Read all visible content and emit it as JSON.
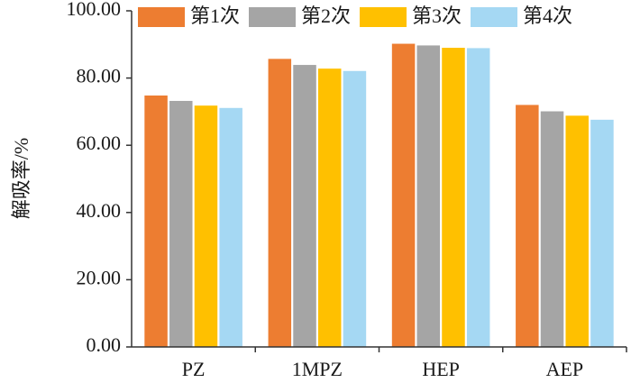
{
  "chart_data": {
    "type": "bar",
    "title": "",
    "xlabel": "",
    "ylabel": "解吸率/%",
    "ylim": [
      0,
      100
    ],
    "yticks": [
      "0.00",
      "20.00",
      "40.00",
      "60.00",
      "80.00",
      "100.00"
    ],
    "categories": [
      "PZ",
      "1MPZ",
      "HEP",
      "AEP"
    ],
    "legend_position": "top",
    "grid": false,
    "series": [
      {
        "name": "第1次",
        "color": "#ED7D31",
        "values": [
          74.8,
          85.7,
          90.2,
          72.0
        ]
      },
      {
        "name": "第2次",
        "color": "#A5A5A5",
        "values": [
          73.2,
          83.9,
          89.7,
          70.1
        ]
      },
      {
        "name": "第3次",
        "color": "#FFC000",
        "values": [
          71.8,
          82.8,
          89.0,
          68.8
        ]
      },
      {
        "name": "第4次",
        "color": "#A5D8F3",
        "values": [
          71.1,
          82.1,
          88.9,
          67.6
        ]
      }
    ]
  }
}
